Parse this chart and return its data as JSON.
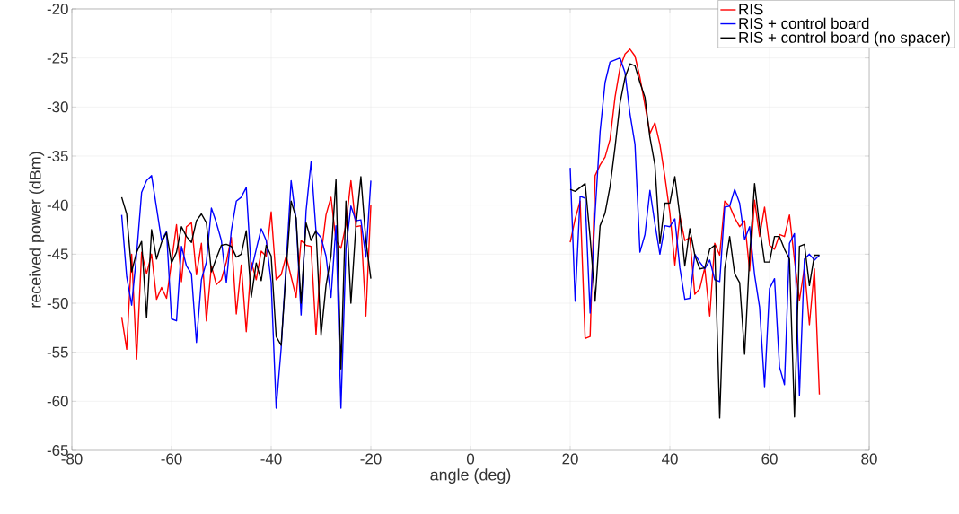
{
  "chart_data": {
    "type": "line",
    "xlabel": "angle (deg)",
    "ylabel": "received power (dBm)",
    "x": [
      -70,
      -69,
      -68,
      -67,
      -66,
      -65,
      -64,
      -63,
      -62,
      -61,
      -60,
      -59,
      -58,
      -57,
      -56,
      -55,
      -54,
      -53,
      -52,
      -51,
      -50,
      -49,
      -48,
      -47,
      -46,
      -45,
      -44,
      -43,
      -42,
      -41,
      -40,
      -39,
      -38,
      -37,
      -36,
      -35,
      -34,
      -33,
      -32,
      -31,
      -30,
      -29,
      -28,
      -27,
      -26,
      -25,
      -24,
      -23,
      -22,
      -21,
      -20,
      0,
      20,
      21,
      22,
      23,
      24,
      25,
      26,
      27,
      28,
      29,
      30,
      31,
      32,
      33,
      34,
      35,
      36,
      37,
      38,
      39,
      40,
      41,
      42,
      43,
      44,
      45,
      46,
      47,
      48,
      49,
      50,
      51,
      52,
      53,
      54,
      55,
      56,
      57,
      58,
      59,
      60,
      61,
      62,
      63,
      64,
      65,
      66,
      67,
      68,
      69,
      70
    ],
    "series": [
      {
        "name": "RIS",
        "color": "#ff0000",
        "values": [
          -51.4,
          -54.7,
          -45,
          -55.7,
          -44.8,
          -47,
          -45,
          -49.6,
          -48.4,
          -49.5,
          -45.8,
          -42,
          -47.8,
          -42.2,
          -41.8,
          -47.1,
          -43.9,
          -51.8,
          -46.2,
          -48.1,
          -47.6,
          -45.8,
          -43.3,
          -51.1,
          -46.1,
          -52.9,
          -45.8,
          -47.6,
          -44.7,
          -45.2,
          -40.7,
          -47.6,
          -47.1,
          -45.2,
          -47.3,
          -49.4,
          -43.6,
          -44.1,
          -44.2,
          -53.2,
          -45.2,
          -41,
          -39.2,
          -43.6,
          -44.4,
          -42,
          -37.5,
          -42.2,
          -42.1,
          -51.3,
          -40,
          null,
          -43.8,
          -41.4,
          -39.6,
          -53.6,
          -53.4,
          -37,
          -35.9,
          -35.1,
          -33.3,
          -29,
          -26,
          -24.6,
          -24.1,
          -24.8,
          -27,
          -29.8,
          -32.7,
          -31.6,
          -33.8,
          -37.1,
          -40.8,
          -46.1,
          -41.1,
          -43.6,
          -43.3,
          -49.1,
          -48.5,
          -46.4,
          -51.3,
          -43.9,
          -45.1,
          -39.6,
          -40.1,
          -41.3,
          -42.2,
          -41.6,
          -46.7,
          -39.5,
          -43.2,
          -40.2,
          -44.1,
          -44.5,
          -43,
          -43.2,
          -41,
          -45.6,
          -49.7,
          -46.4,
          -52.2,
          -46.5,
          -59.3
        ]
      },
      {
        "name": "RIS + control board",
        "color": "#0000ff",
        "values": [
          -41,
          -47.3,
          -50.2,
          -45,
          -38.7,
          -37.5,
          -37,
          -40.3,
          -43.6,
          -42.7,
          -51.6,
          -51.8,
          -44.2,
          -46.2,
          -47,
          -54,
          -47.6,
          -45.8,
          -40.3,
          -41.8,
          -43.6,
          -47.9,
          -42.6,
          -39.6,
          -39.2,
          -38.2,
          -46.7,
          -44.5,
          -42.4,
          -43.6,
          -47.9,
          -60.7,
          -54.6,
          -46,
          -37.5,
          -41.5,
          -51.2,
          -40.6,
          -35.6,
          -42.7,
          -43.3,
          -45.2,
          -49.4,
          -42.1,
          -60.7,
          -44.5,
          -40.1,
          -41.6,
          -41.5,
          -45.3,
          -37.5,
          null,
          -36.2,
          -49.8,
          -39.1,
          -39.3,
          -51,
          -40.8,
          -32.5,
          -27.5,
          -25.4,
          -25.2,
          -25,
          -26.5,
          -30.7,
          -33.8,
          -44.8,
          -43,
          -38.5,
          -41.9,
          -45,
          -42.1,
          -42.2,
          -41.4,
          -46.4,
          -49.6,
          -49.5,
          -45,
          -45.8,
          -46.5,
          -45.6,
          -47.6,
          -47.8,
          -40.2,
          -40.1,
          -38.4,
          -39.8,
          -43.5,
          -42.2,
          -47.1,
          -50.4,
          -58.5,
          -48.5,
          -47.5,
          -56.5,
          -58.3,
          -43.9,
          -42.9,
          -59.4,
          -45.5,
          -45,
          -45.6,
          -45.1
        ]
      },
      {
        "name": "RIS + control board (no spacer)",
        "color": "#000000",
        "values": [
          -39.2,
          -40.9,
          -46.8,
          -44.8,
          -43.7,
          -51.5,
          -42.5,
          -45.5,
          -43.8,
          -42.8,
          -45.9,
          -44.8,
          -42.2,
          -43.2,
          -43.8,
          -41.6,
          -40.9,
          -41.8,
          -46.8,
          -45.4,
          -44.1,
          -44,
          -44.2,
          -45.3,
          -45,
          -42.6,
          -49.4,
          -45.9,
          -47.7,
          -44.1,
          -45.2,
          -53.4,
          -54.3,
          -46.7,
          -39.6,
          -41.3,
          -50,
          -41.8,
          -43.6,
          -42.6,
          -53.3,
          -48.2,
          -45.2,
          -37.4,
          -56.7,
          -39.6,
          -50,
          -42.1,
          -37.1,
          -43.6,
          -47.5,
          null,
          -38.4,
          -38.6,
          -38.2,
          -37.8,
          -43.3,
          -49.8,
          -42.1,
          -40.8,
          -38.1,
          -34.1,
          -29.6,
          -27,
          -25.6,
          -25.8,
          -27.5,
          -29,
          -33.1,
          -35.9,
          -43.9,
          -39.8,
          -39.8,
          -37.1,
          -41.1,
          -46.2,
          -42.4,
          -45.1,
          -46.5,
          -46.4,
          -44.5,
          -44.1,
          -61.7,
          -46.5,
          -43.2,
          -47,
          -47.9,
          -55.2,
          -45.2,
          -37.8,
          -42.2,
          -45.8,
          -45.8,
          -43.2,
          -43.2,
          -44.5,
          -45.5,
          -61.6,
          -44.2,
          -44,
          -48.2,
          -45.1,
          -45.1
        ]
      }
    ],
    "xlim": [
      -80,
      80
    ],
    "ylim": [
      -65,
      -20
    ],
    "xticks": [
      -80,
      -60,
      -40,
      -20,
      0,
      20,
      40,
      60,
      80
    ],
    "yticks": [
      -65,
      -60,
      -55,
      -50,
      -45,
      -40,
      -35,
      -30,
      -25,
      -20
    ],
    "grid": true,
    "legend": "top right",
    "marker": "none",
    "line_style": "solid"
  }
}
